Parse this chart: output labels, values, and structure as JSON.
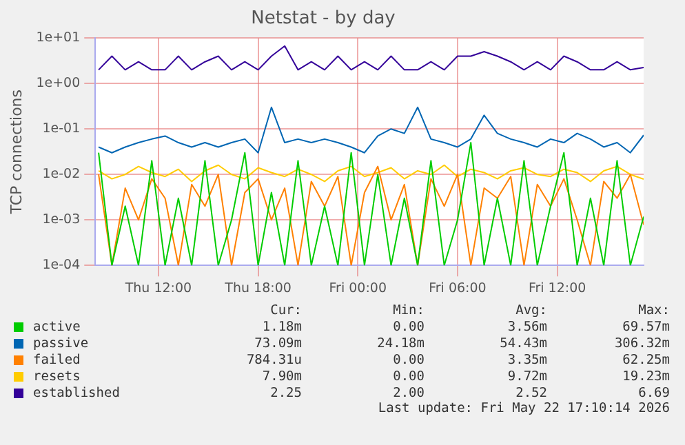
{
  "chart_data": {
    "type": "line",
    "title": "Netstat - by day",
    "ylabel": "TCP connections",
    "log": "y",
    "grid": true,
    "legend": "bottom",
    "marker": "none",
    "x": [
      "2026-05-21T08:24",
      "2026-05-21T09:12",
      "2026-05-21T10:00",
      "2026-05-21T10:48",
      "2026-05-21T11:36",
      "2026-05-21T12:24",
      "2026-05-21T13:12",
      "2026-05-21T14:00",
      "2026-05-21T14:48",
      "2026-05-21T15:36",
      "2026-05-21T16:24",
      "2026-05-21T17:12",
      "2026-05-21T18:00",
      "2026-05-21T18:48",
      "2026-05-21T19:36",
      "2026-05-21T20:24",
      "2026-05-21T21:12",
      "2026-05-21T22:00",
      "2026-05-21T22:48",
      "2026-05-21T23:36",
      "2026-05-22T00:24",
      "2026-05-22T01:12",
      "2026-05-22T02:00",
      "2026-05-22T02:48",
      "2026-05-22T03:36",
      "2026-05-22T04:24",
      "2026-05-22T05:12",
      "2026-05-22T06:00",
      "2026-05-22T06:48",
      "2026-05-22T07:36",
      "2026-05-22T08:24",
      "2026-05-22T09:12",
      "2026-05-22T10:00",
      "2026-05-22T10:48",
      "2026-05-22T11:36",
      "2026-05-22T12:24",
      "2026-05-22T13:12",
      "2026-05-22T14:00",
      "2026-05-22T14:48",
      "2026-05-22T15:36",
      "2026-05-22T16:24",
      "2026-05-22T17:12"
    ],
    "xlim": [
      "2026-05-21T08:12",
      "2026-05-22T17:12"
    ],
    "xticks": [
      {
        "value": "2026-05-21T12:00",
        "label": "Thu 12:00"
      },
      {
        "value": "2026-05-21T18:00",
        "label": "Thu 18:00"
      },
      {
        "value": "2026-05-22T00:00",
        "label": "Fri 00:00"
      },
      {
        "value": "2026-05-22T06:00",
        "label": "Fri 06:00"
      },
      {
        "value": "2026-05-22T12:00",
        "label": "Fri 12:00"
      }
    ],
    "ylim": [
      0.0001,
      10
    ],
    "yticks": [
      {
        "value": 0.0001,
        "label": "1e-04"
      },
      {
        "value": 0.001,
        "label": "1e-03"
      },
      {
        "value": 0.01,
        "label": "1e-02"
      },
      {
        "value": 0.1,
        "label": "1e-01"
      },
      {
        "value": 1,
        "label": "1e+00"
      },
      {
        "value": 10,
        "label": "1e+01"
      }
    ],
    "series": [
      {
        "name": "active",
        "color": "#00cc00",
        "values": [
          0.03,
          0.0001,
          0.002,
          0.0001,
          0.02,
          0.0001,
          0.003,
          0.0001,
          0.02,
          0.0001,
          0.001,
          0.03,
          0.0001,
          0.004,
          0.0001,
          0.02,
          0.0001,
          0.002,
          0.0001,
          0.03,
          0.0001,
          0.01,
          0.0001,
          0.003,
          0.0001,
          0.02,
          0.0001,
          0.001,
          0.05,
          0.0001,
          0.003,
          0.0001,
          0.02,
          0.0001,
          0.002,
          0.03,
          0.0001,
          0.003,
          0.0001,
          0.02,
          0.0001,
          0.00118
        ]
      },
      {
        "name": "passive",
        "color": "#0066b3",
        "values": [
          0.04,
          0.03,
          0.04,
          0.05,
          0.06,
          0.07,
          0.05,
          0.04,
          0.05,
          0.04,
          0.05,
          0.06,
          0.03,
          0.3,
          0.05,
          0.06,
          0.05,
          0.06,
          0.05,
          0.04,
          0.03,
          0.07,
          0.1,
          0.08,
          0.3,
          0.06,
          0.05,
          0.04,
          0.06,
          0.2,
          0.08,
          0.06,
          0.05,
          0.04,
          0.06,
          0.05,
          0.08,
          0.06,
          0.04,
          0.05,
          0.03,
          0.073
        ]
      },
      {
        "name": "failed",
        "color": "#ff8000",
        "values": [
          0.01,
          0.0001,
          0.005,
          0.001,
          0.008,
          0.003,
          0.0001,
          0.006,
          0.002,
          0.01,
          0.0001,
          0.004,
          0.008,
          0.001,
          0.005,
          0.0001,
          0.007,
          0.002,
          0.009,
          0.0001,
          0.004,
          0.015,
          0.001,
          0.006,
          0.0001,
          0.008,
          0.002,
          0.01,
          0.0001,
          0.005,
          0.003,
          0.009,
          0.0001,
          0.006,
          0.002,
          0.008,
          0.001,
          0.0001,
          0.007,
          0.003,
          0.01,
          0.00078
        ]
      },
      {
        "name": "resets",
        "color": "#ffcc00",
        "values": [
          0.012,
          0.008,
          0.01,
          0.015,
          0.011,
          0.009,
          0.013,
          0.007,
          0.012,
          0.016,
          0.01,
          0.008,
          0.014,
          0.011,
          0.009,
          0.013,
          0.01,
          0.007,
          0.012,
          0.015,
          0.009,
          0.011,
          0.014,
          0.008,
          0.012,
          0.01,
          0.016,
          0.009,
          0.013,
          0.011,
          0.008,
          0.012,
          0.014,
          0.01,
          0.009,
          0.013,
          0.011,
          0.007,
          0.012,
          0.015,
          0.01,
          0.0079
        ]
      },
      {
        "name": "established",
        "color": "#330099",
        "values": [
          2,
          4,
          2,
          3,
          2,
          2,
          4,
          2,
          3,
          4,
          2,
          3,
          2,
          4,
          6.69,
          2,
          3,
          2,
          4,
          2,
          3,
          2,
          4,
          2,
          2,
          3,
          2,
          4,
          4,
          5,
          4,
          3,
          2,
          3,
          2,
          4,
          3,
          2,
          2,
          3,
          2,
          2.25
        ]
      }
    ],
    "annotations": [
      "Cur:",
      "Min:",
      "Avg:",
      "Max:",
      "1.18m",
      "0.00",
      "3.56m",
      "69.57m",
      "73.09m",
      "24.18m",
      "54.43m",
      "306.32m",
      "784.31u",
      "0.00",
      "3.35m",
      "62.25m",
      "7.90m",
      "0.00",
      "9.72m",
      "19.23m",
      "2.25",
      "2.00",
      "2.52",
      "6.69",
      "Last update: Fri May 22 17:10:14 2026"
    ]
  }
}
